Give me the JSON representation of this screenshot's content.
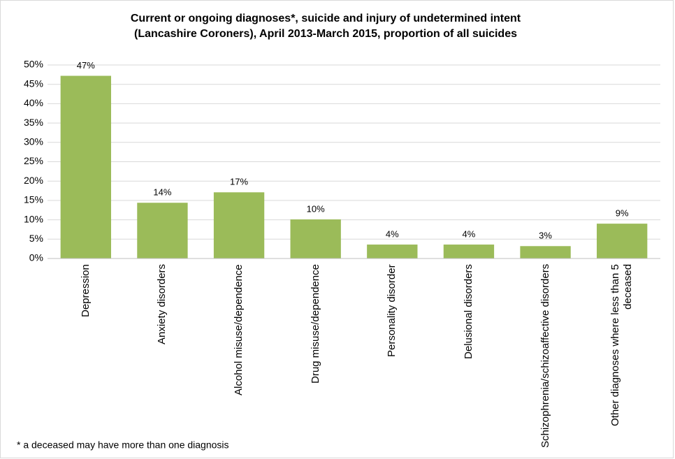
{
  "chart_data": {
    "type": "bar",
    "title": "Current or ongoing diagnoses*, suicide and injury of undetermined intent",
    "subtitle": "(Lancashire Coroners), April 2013-March 2015, proportion of all suicides",
    "categories": [
      "Depression",
      "Anxiety disorders",
      "Alcohol misuse/dependence",
      "Drug misuse/dependence",
      "Personality disorder",
      "Delusional disorders",
      "Schizophrenia/schizoaffective disorders",
      "Other diagnoses where less than 5 deceased"
    ],
    "values": [
      47.2,
      14.4,
      17.1,
      10.1,
      3.6,
      3.6,
      3.2,
      9.0
    ],
    "value_labels": [
      "47%",
      "14%",
      "17%",
      "10%",
      "4%",
      "4%",
      "3%",
      "9%"
    ],
    "color": "#9bbb59",
    "ylim": [
      0,
      50
    ],
    "yticks": [
      {
        "value": 0,
        "label": "0%"
      },
      {
        "value": 5,
        "label": "5%"
      },
      {
        "value": 10,
        "label": "10%"
      },
      {
        "value": 15,
        "label": "15%"
      },
      {
        "value": 20,
        "label": "20%"
      },
      {
        "value": 25,
        "label": "25%"
      },
      {
        "value": 30,
        "label": "30%"
      },
      {
        "value": 35,
        "label": "35%"
      },
      {
        "value": 40,
        "label": "40%"
      },
      {
        "value": 45,
        "label": "45%"
      },
      {
        "value": 50,
        "label": "50%"
      }
    ],
    "grid": true,
    "footnote": "* a deceased may have more than one diagnosis"
  }
}
